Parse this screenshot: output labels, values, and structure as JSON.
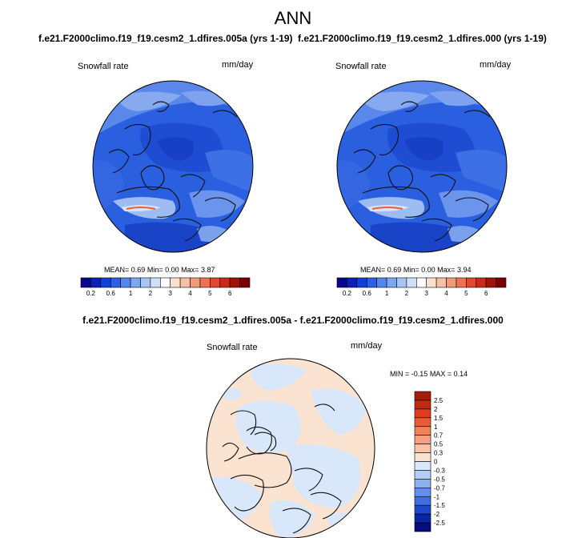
{
  "title": "ANN",
  "panels": [
    {
      "case": "f.e21.F2000climo.f19_f19.cesm2_1.dfires.005a (yrs 1-19)",
      "variable": "Snowfall rate",
      "units": "mm/day",
      "stats": {
        "mean_label": "MEAN=",
        "mean": "0.69",
        "min_label": "Min=",
        "min": "0.00",
        "max_label": "Max=",
        "max": "3.87"
      }
    },
    {
      "case": "f.e21.F2000climo.f19_f19.cesm2_1.dfires.000 (yrs 1-19)",
      "variable": "Snowfall rate",
      "units": "mm/day",
      "stats": {
        "mean_label": "MEAN=",
        "mean": "0.69",
        "min_label": "Min=",
        "min": "0.00",
        "max_label": "Max=",
        "max": "3.94"
      }
    }
  ],
  "colorbar": {
    "tick_labels": [
      "0.2",
      "0.6",
      "1",
      "2",
      "3",
      "4",
      "5",
      "6"
    ],
    "colors": [
      "#08088c",
      "#0a22b4",
      "#1240d6",
      "#2a62e6",
      "#5287ec",
      "#7ea7f0",
      "#a8c6f4",
      "#cfe0f8",
      "#ffffff",
      "#fbe0d0",
      "#f7bfa3",
      "#f29a78",
      "#ec7250",
      "#e2492c",
      "#c82a15",
      "#a01208",
      "#780000"
    ]
  },
  "difference": {
    "title": "f.e21.F2000climo.f19_f19.cesm2_1.dfires.005a - f.e21.F2000climo.f19_f19.cesm2_1.dfires.000",
    "variable": "Snowfall rate",
    "units": "mm/day",
    "stats": {
      "min_label": "MIN =",
      "min": "-0.15",
      "max_label": "MAX =",
      "max": "0.14"
    },
    "colorbar": {
      "tick_labels": [
        "2.5",
        "2",
        "1.5",
        "1",
        "0.7",
        "0.5",
        "0.3",
        "0",
        "-0.3",
        "-0.5",
        "-0.7",
        "-1",
        "-1.5",
        "-2",
        "-2.5"
      ],
      "colors": [
        "#a51c0a",
        "#c42a12",
        "#dc3e1f",
        "#ea5c36",
        "#f2805a",
        "#f6a181",
        "#f8c2a6",
        "#fbe3d1",
        "#d8e8fa",
        "#b3cdf5",
        "#8db0ef",
        "#6690e8",
        "#3f6ee0",
        "#1c48cc",
        "#0b25a8",
        "#060d7a"
      ]
    }
  }
}
